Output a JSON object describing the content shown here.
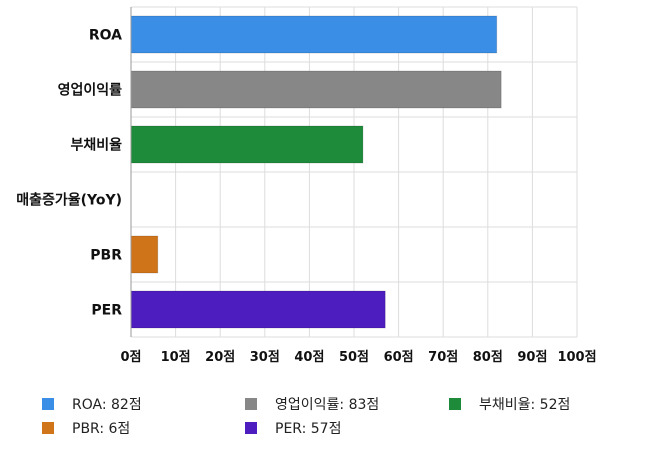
{
  "chart_data": {
    "type": "bar",
    "orientation": "horizontal",
    "categories": [
      "ROA",
      "영업이익률",
      "부채비율",
      "매출증가율(YoY)",
      "PBR",
      "PER"
    ],
    "values": [
      82,
      83,
      52,
      0,
      6,
      57
    ],
    "colors": [
      "#3a8ee6",
      "#878787",
      "#1e8b3a",
      "#cccccc",
      "#cf7419",
      "#4e1dbf"
    ],
    "xlim": [
      0,
      100
    ],
    "x_ticks": [
      0,
      10,
      20,
      30,
      40,
      50,
      60,
      70,
      80,
      90,
      100
    ],
    "x_tick_labels": [
      "0점",
      "10점",
      "20점",
      "30점",
      "40점",
      "50점",
      "60점",
      "70점",
      "80점",
      "90점",
      "100점"
    ],
    "grid": true,
    "legend_position": "bottom",
    "legend": [
      {
        "label": "ROA: 82점",
        "color": "#3a8ee6"
      },
      {
        "label": "영업이익률: 83점",
        "color": "#878787"
      },
      {
        "label": "부채비율: 52점",
        "color": "#1e8b3a"
      },
      {
        "label": "PBR: 6점",
        "color": "#cf7419"
      },
      {
        "label": "PER: 57점",
        "color": "#4e1dbf"
      }
    ]
  }
}
